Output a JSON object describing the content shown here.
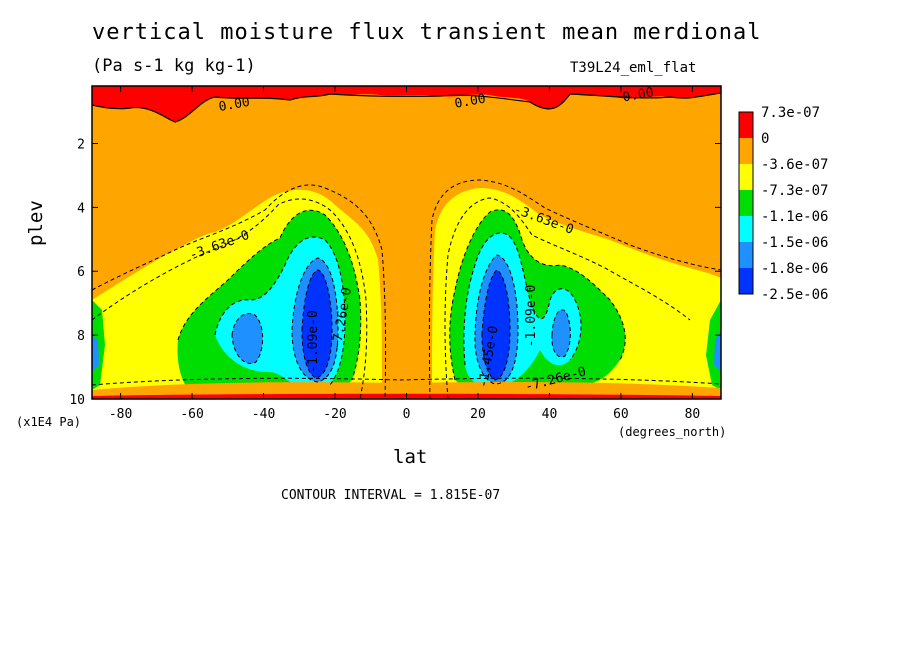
{
  "chart_data": {
    "type": "heatmap",
    "title": "vertical moisture flux transient mean merdional",
    "units": "(Pa s-1 kg kg-1)",
    "run_label": "T39L24_eml_flat",
    "xlabel": "lat",
    "xunit": "(degrees_north)",
    "ylabel": "plev",
    "yscale": "(x1E4 Pa)",
    "xlim": [
      -88,
      88
    ],
    "ylim": [
      10,
      0.2
    ],
    "x_ticks": [
      -80,
      -60,
      -40,
      -20,
      0,
      20,
      40,
      60,
      80
    ],
    "x_tick_labels": [
      "-80",
      "-60",
      "-40",
      "-20",
      "0",
      "20",
      "40",
      "60",
      "80"
    ],
    "y_ticks": [
      2,
      4,
      6,
      8,
      10
    ],
    "y_tick_labels": [
      "2",
      "4",
      "6",
      "8",
      "10"
    ],
    "contour_interval": "CONTOUR INTERVAL = 1.815E-07",
    "levels": [
      "7.3e-07",
      "0",
      "-3.6e-07",
      "-7.3e-07",
      "-1.1e-06",
      "-1.5e-06",
      "-1.8e-06",
      "-2.5e-06"
    ],
    "level_colors": [
      "#ff0000",
      "#ffa500",
      "#ffff00",
      "#00dd00",
      "#00ffff",
      "#1e90ff",
      "#0033ff"
    ],
    "contour_labels": [
      {
        "text": "0.00",
        "lat": -48,
        "plev": 0.9
      },
      {
        "text": "0.00",
        "lat": 18,
        "plev": 0.8
      },
      {
        "text": "0.00",
        "lat": 65,
        "plev": 0.6
      },
      {
        "text": "-3.63e-0",
        "lat": -52,
        "plev": 5.3
      },
      {
        "text": "-3.63e-0",
        "lat": 38,
        "plev": 4.5
      },
      {
        "text": "-1.09e-0",
        "lat": -25,
        "plev": 8.2
      },
      {
        "text": "-7.26e-0",
        "lat": -17,
        "plev": 7.5
      },
      {
        "text": "-1.45e-0",
        "lat": 24,
        "plev": 8.7
      },
      {
        "text": "-1.09e-0",
        "lat": 36,
        "plev": 7.4
      },
      {
        "text": "-7.26e-0",
        "lat": 42,
        "plev": 9.5
      }
    ],
    "cells": [
      {
        "lat": -25,
        "plev": 7.8,
        "value": -2.5e-06
      },
      {
        "lat": 25,
        "plev": 7.8,
        "value": -2.5e-06
      },
      {
        "lat": -45,
        "plev": 8.1,
        "value": -1.8e-06
      },
      {
        "lat": 44,
        "plev": 8.0,
        "value": -1.8e-06
      },
      {
        "lat": -87,
        "plev": 8.7,
        "value": -1.5e-06
      },
      {
        "lat": 87,
        "plev": 8.5,
        "value": -1.5e-06
      },
      {
        "lat": 0,
        "plev": 5.0,
        "value": -3.6e-07
      },
      {
        "lat": -60,
        "plev": 0.5,
        "value": 7.3e-07
      }
    ]
  }
}
